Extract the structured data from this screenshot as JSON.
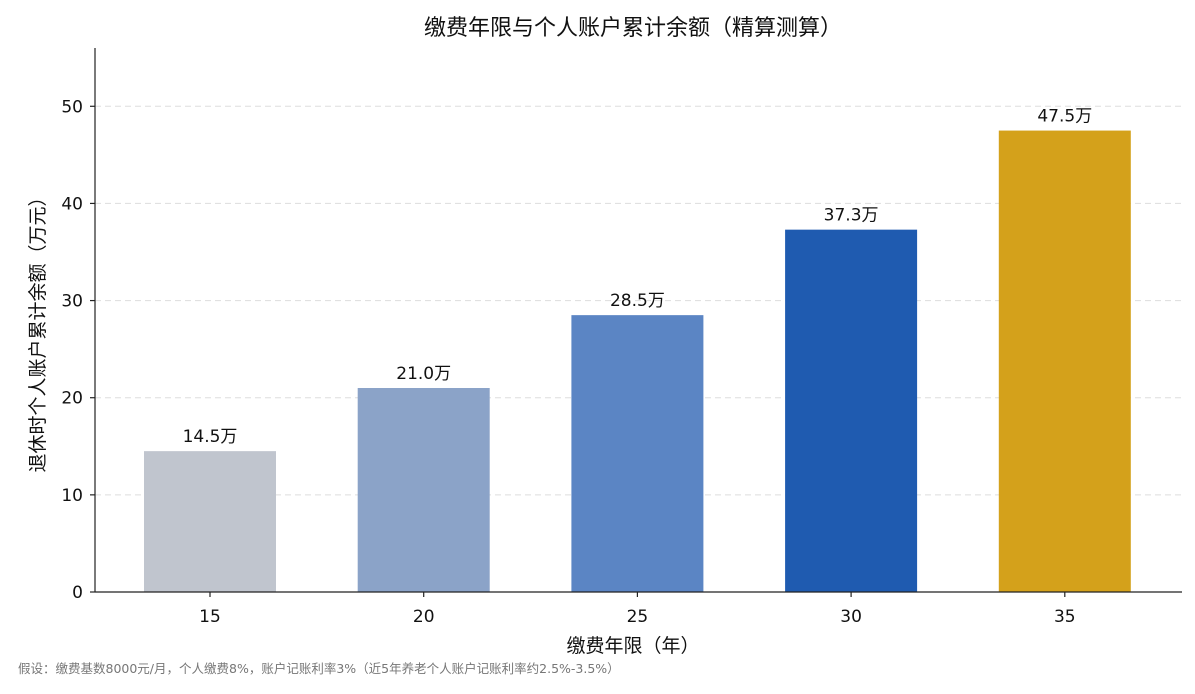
{
  "chart_data": {
    "type": "bar",
    "title": "缴费年限与个人账户累计余额（精算测算）",
    "xlabel": "缴费年限（年）",
    "ylabel": "退休时个人账户累计余额（万元）",
    "categories": [
      "15",
      "20",
      "25",
      "30",
      "35"
    ],
    "values": [
      14.5,
      21.0,
      28.5,
      37.3,
      47.5
    ],
    "data_labels": [
      "14.5万",
      "21.0万",
      "28.5万",
      "37.3万",
      "47.5万"
    ],
    "colors": [
      "#c0c5ce",
      "#8ba3c8",
      "#5b85c4",
      "#1f5bb0",
      "#d4a11b"
    ],
    "ylim": [
      0,
      56
    ],
    "yticks": [
      0,
      10,
      20,
      30,
      40,
      50
    ],
    "grid": true,
    "grid_axis": "y",
    "legend": false
  },
  "footnote": "假设：缴费基数8000元/月，个人缴费8%，账户记账利率3%（近5年养老个人账户记账利率约2.5%-3.5%）"
}
